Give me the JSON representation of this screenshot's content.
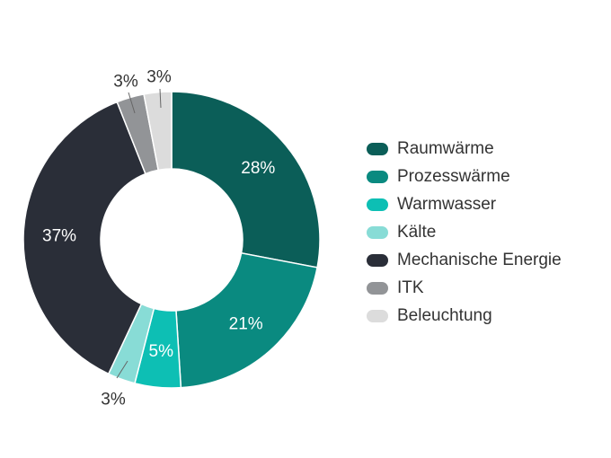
{
  "chart_data": {
    "type": "pie",
    "donut": true,
    "unit": "%",
    "categories": [
      "Raumwärme",
      "Prozesswärme",
      "Warmwasser",
      "Kälte",
      "Mechanische Energie",
      "ITK",
      "Beleuchtung"
    ],
    "values": [
      28,
      21,
      5,
      3,
      37,
      3,
      3
    ],
    "labels": [
      "28%",
      "21%",
      "5%",
      "3%",
      "37%",
      "3%",
      "3%"
    ],
    "colors": [
      "#0b5e58",
      "#0a8a80",
      "#0dbfb4",
      "#88dcd6",
      "#2a2e38",
      "#929497",
      "#dcdcdc"
    ],
    "legend_position": "right"
  }
}
